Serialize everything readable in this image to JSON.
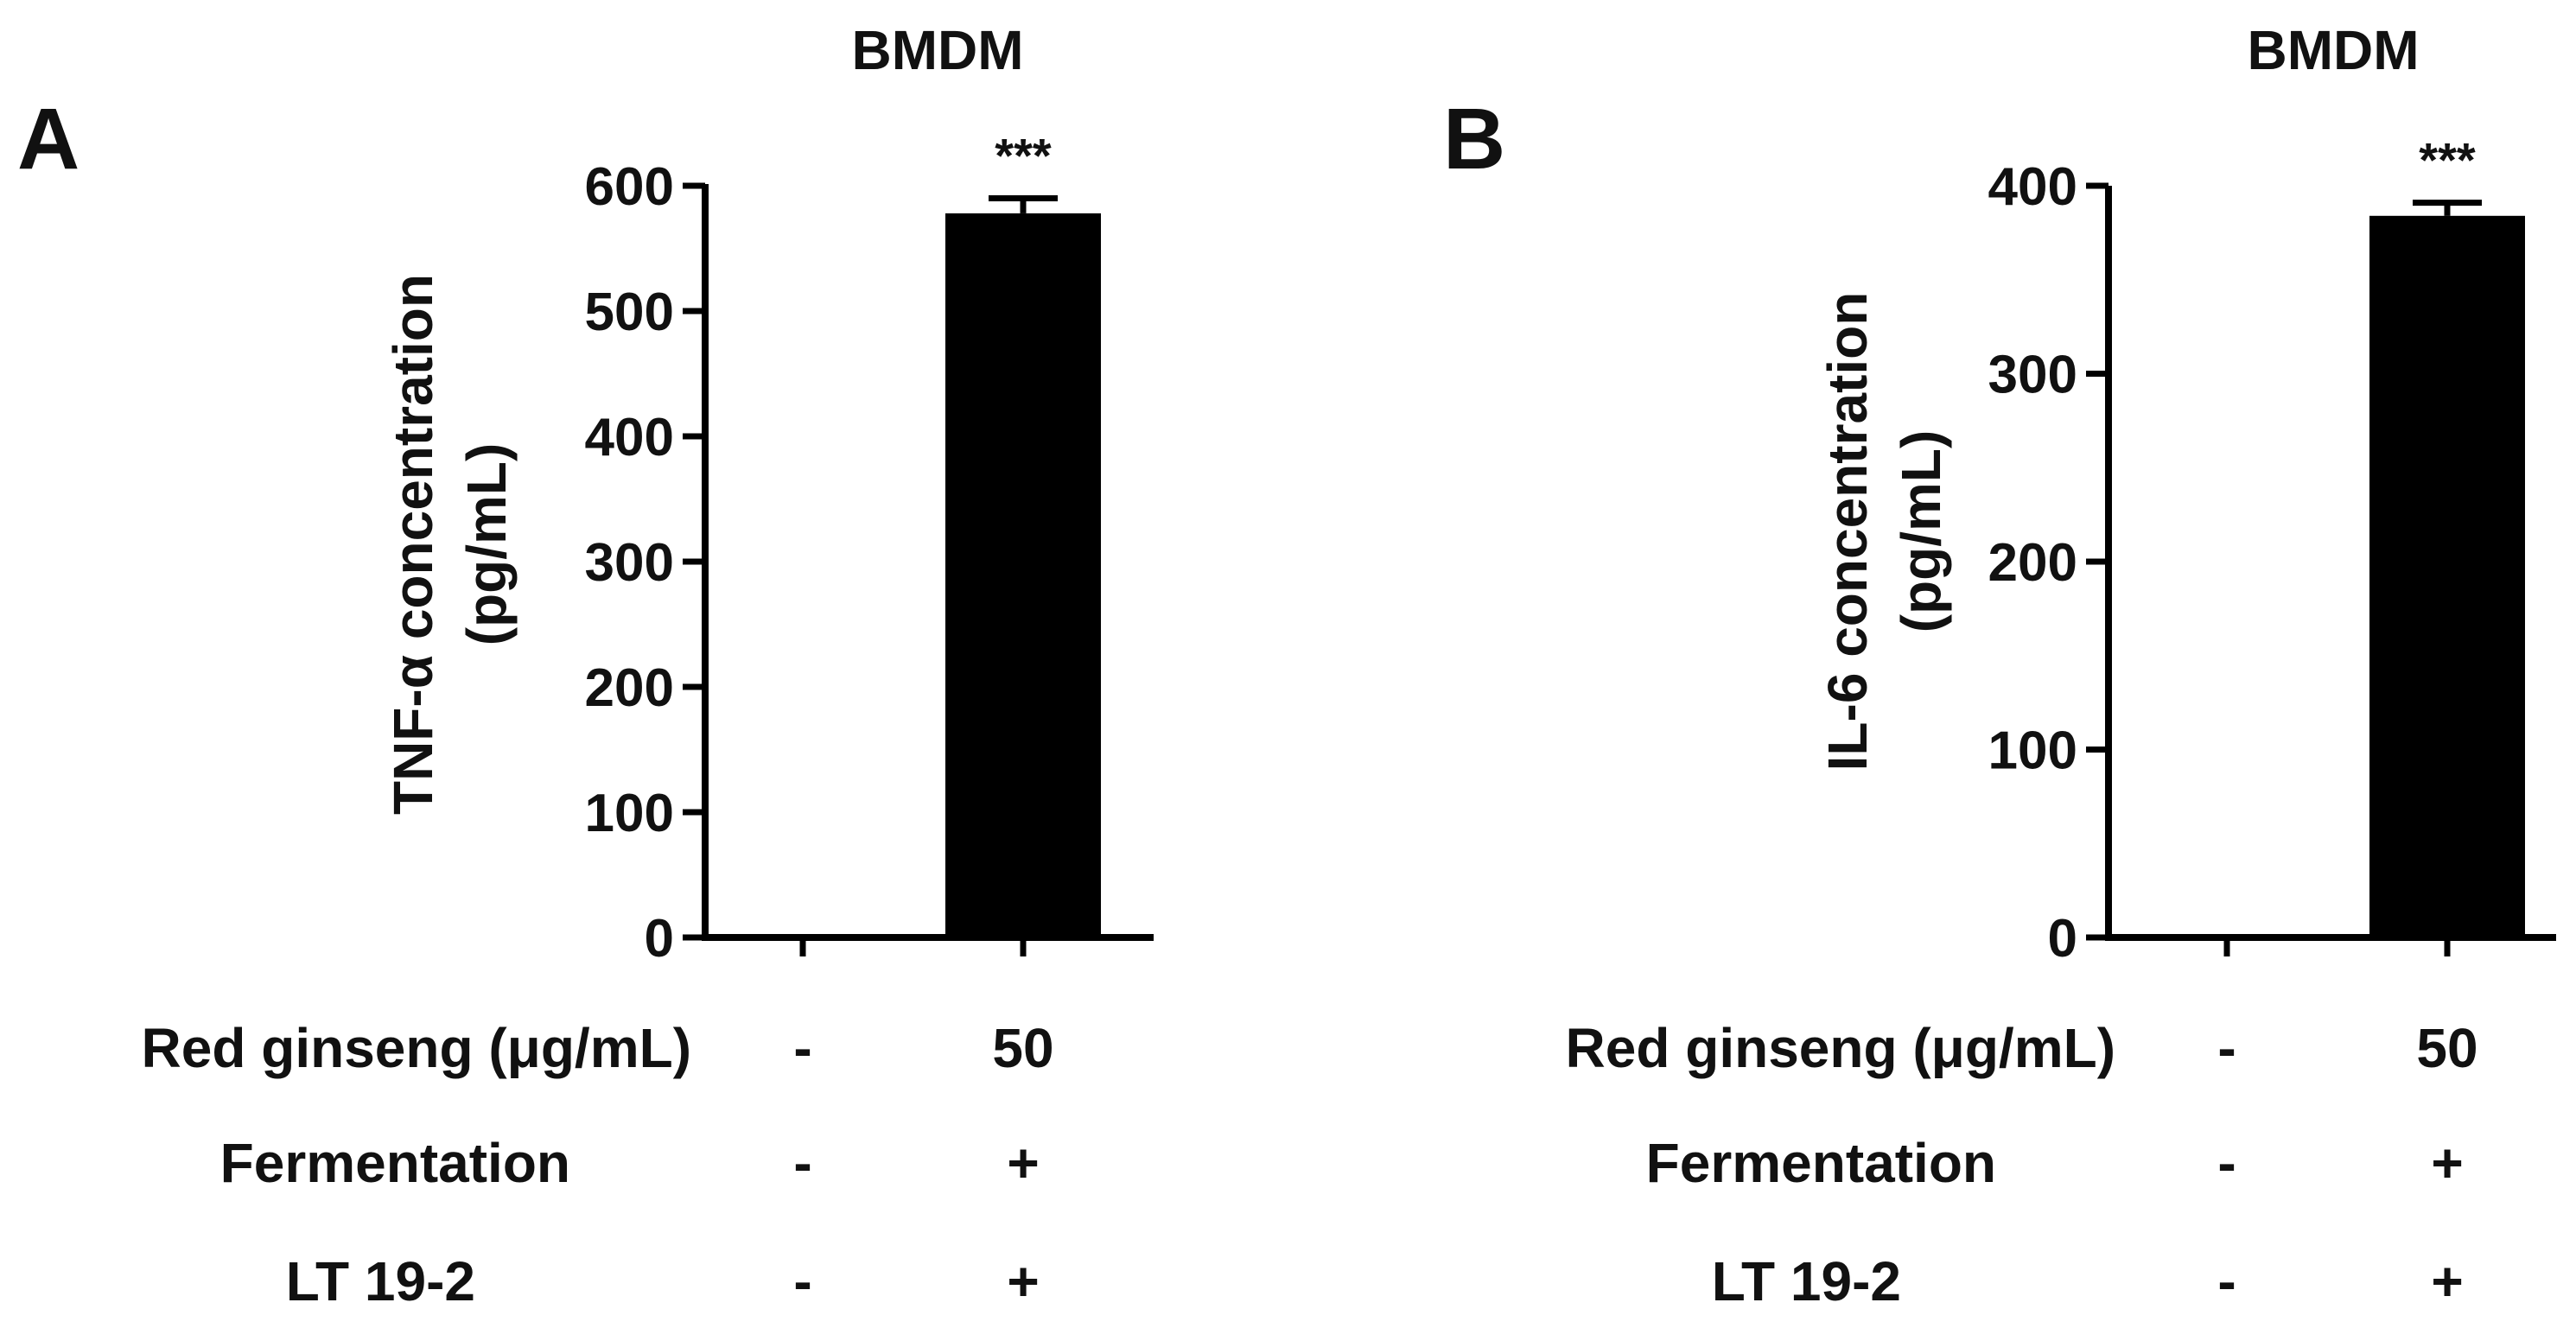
{
  "chart_data": [
    {
      "type": "bar",
      "panel_label": "A",
      "title": "BMDM",
      "ylabel_line1": "TNF-α concentration",
      "ylabel_line2": "(pg/mL)",
      "ylim": [
        0,
        600
      ],
      "yticks": [
        0,
        100,
        200,
        300,
        400,
        500,
        600
      ],
      "categories": [
        "-/-/-",
        "50/+/+"
      ],
      "values": [
        0,
        578
      ],
      "errors": [
        0,
        12
      ],
      "significance": [
        "",
        "***"
      ],
      "bar_color": "#000000",
      "conditions": [
        {
          "label": "Red ginseng (μg/mL)",
          "values": [
            "-",
            "50"
          ]
        },
        {
          "label": "Fermentation",
          "values": [
            "-",
            "+"
          ]
        },
        {
          "label": "LT 19-2",
          "values": [
            "-",
            "+"
          ]
        }
      ]
    },
    {
      "type": "bar",
      "panel_label": "B",
      "title": "BMDM",
      "ylabel_line1": "IL-6 concentration",
      "ylabel_line2": "(pg/mL)",
      "ylim": [
        0,
        400
      ],
      "yticks": [
        0,
        100,
        200,
        300,
        400
      ],
      "categories": [
        "-/-/-",
        "50/+/+"
      ],
      "values": [
        0,
        384
      ],
      "errors": [
        0,
        7
      ],
      "significance": [
        "",
        "***"
      ],
      "bar_color": "#000000",
      "conditions": [
        {
          "label": "Red ginseng (μg/mL)",
          "values": [
            "-",
            "50"
          ]
        },
        {
          "label": "Fermentation",
          "values": [
            "-",
            "+"
          ]
        },
        {
          "label": "LT 19-2",
          "values": [
            "-",
            "+"
          ]
        }
      ]
    }
  ]
}
